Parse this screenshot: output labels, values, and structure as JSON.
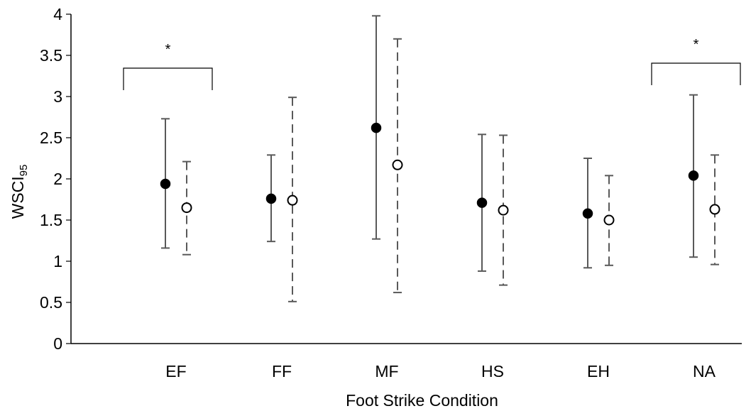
{
  "chart_data": {
    "type": "scatter",
    "xlabel": "Foot Strike Condition",
    "ylabel": {
      "main": "WSCI",
      "subscript": "95"
    },
    "ylim": [
      0,
      4
    ],
    "yticks": [
      0,
      0.5,
      1,
      1.5,
      2,
      2.5,
      3,
      3.5,
      4
    ],
    "ytick_labels": [
      "0",
      "0.5",
      "1",
      "1.5",
      "2",
      "2.5",
      "3",
      "3.5",
      "4"
    ],
    "categories": [
      "EF",
      "FF",
      "MF",
      "HS",
      "EH",
      "NA"
    ],
    "grid": false,
    "legend": "none",
    "series": [
      {
        "marker": "filled-circle",
        "error_line": "solid",
        "color": "#000000",
        "values": [
          1.94,
          1.76,
          2.62,
          1.71,
          1.58,
          2.04
        ],
        "lower": [
          1.16,
          1.24,
          1.27,
          0.88,
          0.92,
          1.05
        ],
        "upper": [
          2.73,
          2.29,
          3.98,
          2.54,
          2.25,
          3.02
        ]
      },
      {
        "marker": "open-circle",
        "error_line": "dashed",
        "color": "#000000",
        "values": [
          1.65,
          1.74,
          2.17,
          1.62,
          1.5,
          1.63
        ],
        "lower": [
          1.08,
          0.51,
          0.62,
          0.71,
          0.95,
          0.96
        ],
        "upper": [
          2.21,
          2.99,
          3.7,
          2.53,
          2.04,
          2.29
        ]
      }
    ],
    "annotations": [
      {
        "text": "*",
        "category": "EF",
        "position": "above bracket"
      },
      {
        "text": "*",
        "category": "NA",
        "position": "above bracket"
      }
    ]
  }
}
